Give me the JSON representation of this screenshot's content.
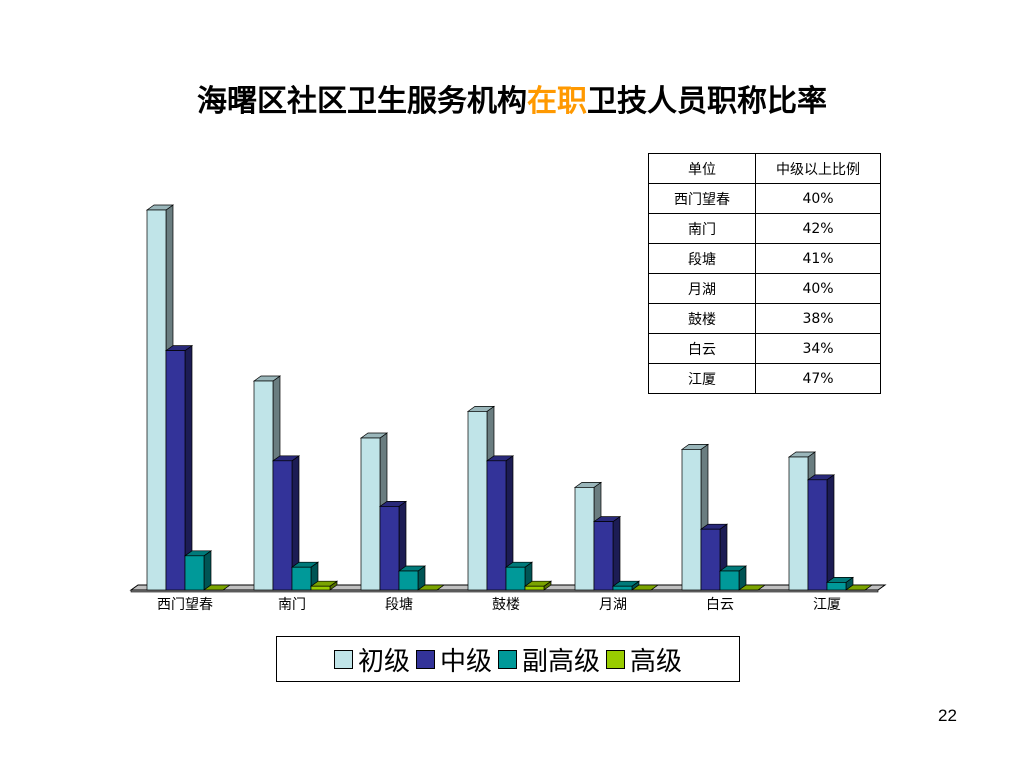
{
  "title": {
    "part1": "海曙区社区卫生服务机构",
    "highlight": "在职",
    "part2": "卫技人员职称比率",
    "highlight_color": "#ff9900"
  },
  "table": {
    "headers": [
      "单位",
      "中级以上比例"
    ],
    "rows": [
      [
        "西门望春",
        "40%"
      ],
      [
        "南门",
        "42%"
      ],
      [
        "段塘",
        "41%"
      ],
      [
        "月湖",
        "40%"
      ],
      [
        "鼓楼",
        "38%"
      ],
      [
        "白云",
        "34%"
      ],
      [
        "江厦",
        "47%"
      ]
    ]
  },
  "page_number": "22",
  "chart_data": {
    "type": "bar",
    "style": "3d-clustered",
    "categories": [
      "西门望春",
      "南门",
      "段塘",
      "鼓楼",
      "月湖",
      "白云",
      "江厦"
    ],
    "series": [
      {
        "name": "初级",
        "color": "#c0e4e8",
        "values": [
          100,
          55,
          40,
          47,
          27,
          37,
          35
        ]
      },
      {
        "name": "中级",
        "color": "#333399",
        "values": [
          63,
          34,
          22,
          34,
          18,
          16,
          29
        ]
      },
      {
        "name": "副高级",
        "color": "#009999",
        "values": [
          9,
          6,
          5,
          6,
          1,
          5,
          2
        ]
      },
      {
        "name": "高级",
        "color": "#99cc00",
        "values": [
          0,
          1,
          0,
          1,
          0,
          0,
          0
        ]
      }
    ],
    "ylim": [
      0,
      100
    ],
    "grid": false,
    "legend_position": "bottom"
  }
}
